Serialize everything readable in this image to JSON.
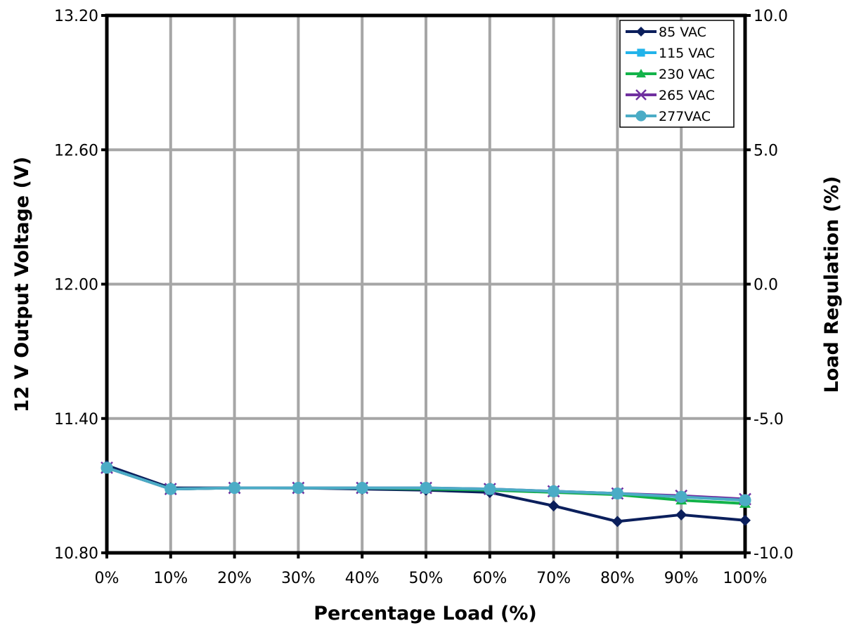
{
  "chart_data": {
    "type": "line",
    "title": "",
    "xlabel": "Percentage Load (%)",
    "ylabel": "12 V Output Voltage (V)",
    "y2label": "Load Regulation (%)",
    "ylim": [
      10.8,
      13.2
    ],
    "y2lim": [
      -10.0,
      10.0
    ],
    "grid": true,
    "legend": "top-right",
    "categories": [
      "0%",
      "10%",
      "20%",
      "30%",
      "40%",
      "50%",
      "60%",
      "70%",
      "80%",
      "90%",
      "100%"
    ],
    "x": [
      0,
      10,
      20,
      30,
      40,
      50,
      60,
      70,
      80,
      90,
      100
    ],
    "yticks": [
      "10.80",
      "11.40",
      "12.00",
      "12.60",
      "13.20"
    ],
    "y2ticks": [
      "-10.0",
      "-5.0",
      "0.0",
      "5.0",
      "10.0"
    ],
    "series": [
      {
        "name": "85 VAC",
        "color": "#0b1f5c",
        "marker": "diamond",
        "values": [
          11.19,
          11.09,
          11.09,
          11.09,
          11.085,
          11.08,
          11.07,
          11.01,
          10.94,
          10.97,
          10.945
        ]
      },
      {
        "name": "115 VAC",
        "color": "#22b3ea",
        "marker": "square",
        "values": [
          11.18,
          11.085,
          11.09,
          11.09,
          11.09,
          11.09,
          11.08,
          11.075,
          11.065,
          11.05,
          11.035
        ]
      },
      {
        "name": "230 VAC",
        "color": "#13b34a",
        "marker": "triangle",
        "values": [
          11.18,
          11.085,
          11.09,
          11.09,
          11.09,
          11.085,
          11.08,
          11.07,
          11.06,
          11.035,
          11.02
        ]
      },
      {
        "name": "265 VAC",
        "color": "#7030a0",
        "marker": "x",
        "values": [
          11.18,
          11.085,
          11.09,
          11.09,
          11.09,
          11.09,
          11.085,
          11.075,
          11.065,
          11.055,
          11.04
        ]
      },
      {
        "name": "277VAC",
        "color": "#4bacc6",
        "marker": "circle",
        "values": [
          11.18,
          11.085,
          11.09,
          11.09,
          11.09,
          11.09,
          11.085,
          11.075,
          11.065,
          11.05,
          11.035
        ]
      }
    ]
  }
}
